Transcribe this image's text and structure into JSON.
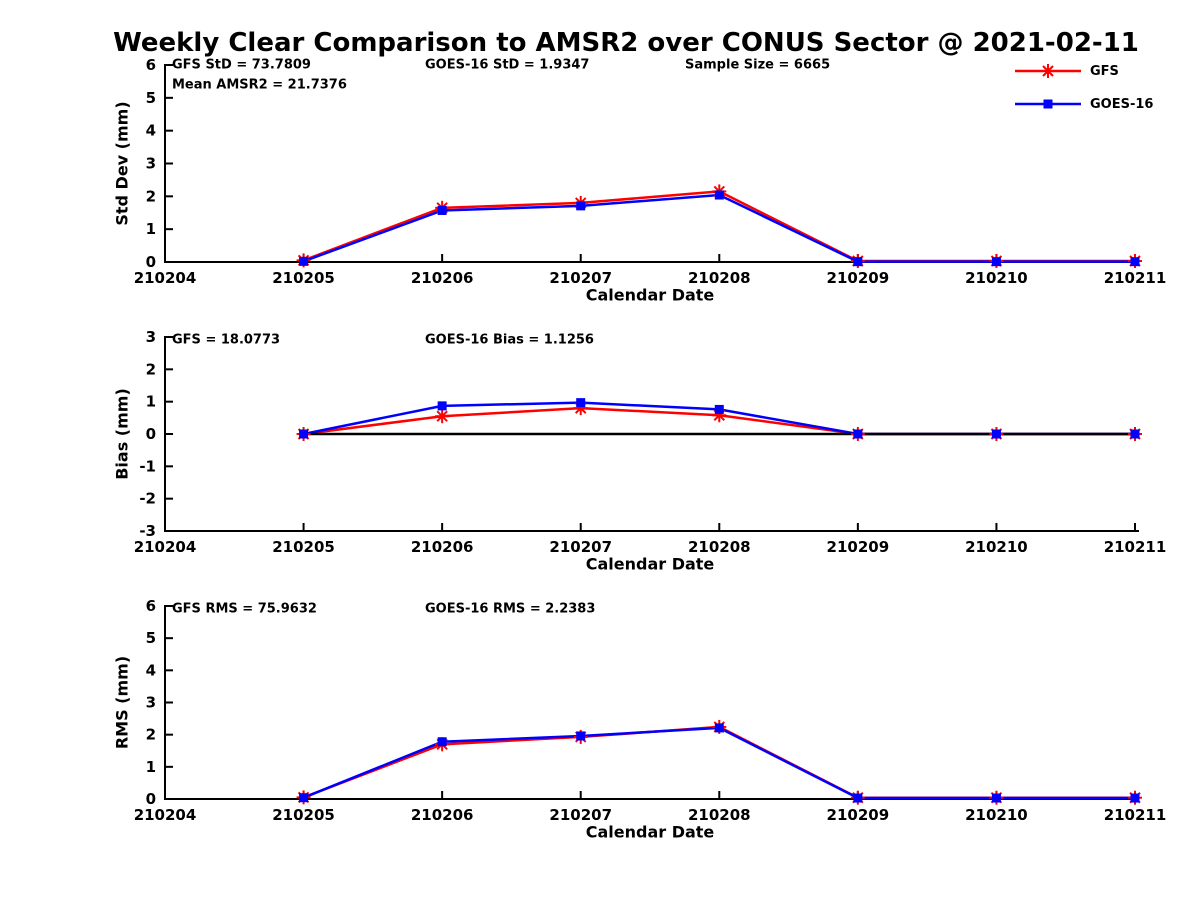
{
  "title": "Weekly Clear Comparison to AMSR2 over CONUS Sector @ 2021-02-11",
  "legend": {
    "items": [
      {
        "label": "GFS",
        "color": "#ff0000",
        "marker": "asterisk"
      },
      {
        "label": "GOES-16",
        "color": "#0000ff",
        "marker": "square"
      }
    ]
  },
  "colors": {
    "gfs": "#ff0000",
    "goes16": "#0000ff",
    "axis": "#000000",
    "background": "#ffffff"
  },
  "chart_data": [
    {
      "type": "line",
      "name": "std-dev",
      "ylabel": "Std Dev (mm)",
      "xlabel": "Calendar Date",
      "ylim": [
        0,
        6
      ],
      "yticks": [
        0,
        1,
        2,
        3,
        4,
        5,
        6
      ],
      "categories": [
        "210204",
        "210205",
        "210206",
        "210207",
        "210208",
        "210209",
        "210210",
        "210211"
      ],
      "x": [
        "210205",
        "210206",
        "210207",
        "210208",
        "210209",
        "210210",
        "210211"
      ],
      "series": [
        {
          "name": "GFS",
          "color": "#ff0000",
          "marker": "asterisk",
          "values": [
            0.05,
            1.65,
            1.8,
            2.15,
            0.03,
            0.03,
            0.03
          ]
        },
        {
          "name": "GOES-16",
          "color": "#0000ff",
          "marker": "square",
          "values": [
            0.02,
            1.57,
            1.71,
            2.04,
            0.01,
            0.01,
            0.01
          ]
        }
      ],
      "annotations": [
        "GFS StD = 73.7809",
        "GOES-16 StD = 1.9347",
        "Sample Size = 6665",
        "Mean AMSR2 = 21.7376"
      ],
      "zero_line": false,
      "grid": false,
      "legend_position": "top-right"
    },
    {
      "type": "line",
      "name": "bias",
      "ylabel": "Bias (mm)",
      "xlabel": "Calendar Date",
      "ylim": [
        -3,
        3
      ],
      "yticks": [
        -3,
        -2,
        -1,
        0,
        1,
        2,
        3
      ],
      "categories": [
        "210204",
        "210205",
        "210206",
        "210207",
        "210208",
        "210209",
        "210210",
        "210211"
      ],
      "x": [
        "210205",
        "210206",
        "210207",
        "210208",
        "210209",
        "210210",
        "210211"
      ],
      "series": [
        {
          "name": "GFS",
          "color": "#ff0000",
          "marker": "asterisk",
          "values": [
            0.0,
            0.55,
            0.8,
            0.58,
            0.0,
            0.0,
            0.0
          ]
        },
        {
          "name": "GOES-16",
          "color": "#0000ff",
          "marker": "square",
          "values": [
            0.0,
            0.87,
            0.97,
            0.76,
            0.0,
            0.0,
            0.0
          ]
        }
      ],
      "annotations": [
        "GFS = 18.0773",
        "GOES-16 Bias  = 1.1256"
      ],
      "zero_line": true,
      "grid": false
    },
    {
      "type": "line",
      "name": "rms",
      "ylabel": "RMS (mm)",
      "xlabel": "Calendar Date",
      "ylim": [
        0,
        6
      ],
      "yticks": [
        0,
        1,
        2,
        3,
        4,
        5,
        6
      ],
      "categories": [
        "210204",
        "210205",
        "210206",
        "210207",
        "210208",
        "210209",
        "210210",
        "210211"
      ],
      "x": [
        "210205",
        "210206",
        "210207",
        "210208",
        "210209",
        "210210",
        "210211"
      ],
      "series": [
        {
          "name": "GFS",
          "color": "#ff0000",
          "marker": "asterisk",
          "values": [
            0.05,
            1.7,
            1.93,
            2.24,
            0.04,
            0.04,
            0.04
          ]
        },
        {
          "name": "GOES-16",
          "color": "#0000ff",
          "marker": "square",
          "values": [
            0.04,
            1.78,
            1.96,
            2.21,
            0.03,
            0.03,
            0.03
          ]
        }
      ],
      "annotations": [
        "GFS RMS = 75.9632",
        "GOES-16 RMS = 2.2383"
      ],
      "zero_line": false,
      "grid": false
    }
  ]
}
